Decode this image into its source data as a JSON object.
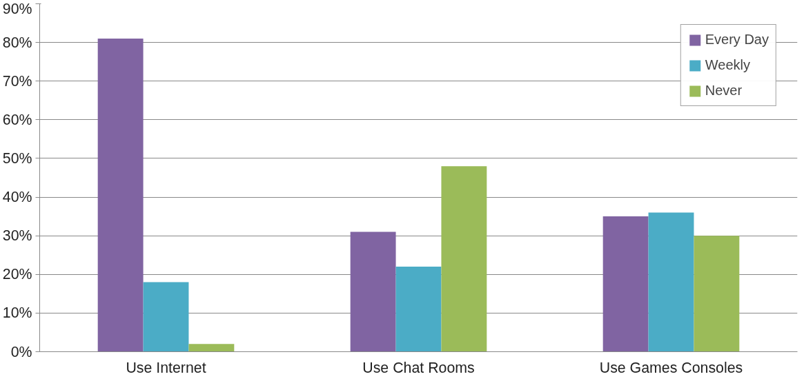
{
  "chart_data": {
    "type": "bar",
    "categories": [
      "Use Internet",
      "Use Chat Rooms",
      "Use Games Consoles"
    ],
    "series": [
      {
        "name": "Every Day",
        "color": "#8064a2",
        "values": [
          81,
          31,
          35
        ]
      },
      {
        "name": "Weekly",
        "color": "#4bacc6",
        "values": [
          18,
          22,
          36
        ]
      },
      {
        "name": "Never",
        "color": "#9bbb59",
        "values": [
          2,
          48,
          30
        ]
      }
    ],
    "ylim": [
      0,
      90
    ],
    "yticks": [
      {
        "value": 0,
        "label": "0%"
      },
      {
        "value": 10,
        "label": "10%"
      },
      {
        "value": 20,
        "label": "20%"
      },
      {
        "value": 30,
        "label": "30%"
      },
      {
        "value": 40,
        "label": "40%"
      },
      {
        "value": 50,
        "label": "50%"
      },
      {
        "value": 60,
        "label": "60%"
      },
      {
        "value": 70,
        "label": "70%"
      },
      {
        "value": 80,
        "label": "80%"
      },
      {
        "value": 90,
        "label": "90%"
      }
    ],
    "grid": "y",
    "legend": "top right"
  }
}
